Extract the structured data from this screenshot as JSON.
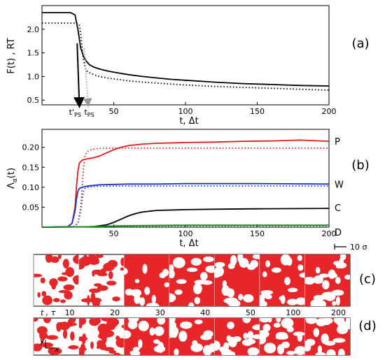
{
  "chart_data": [
    {
      "type": "line",
      "panel_label": "(a)",
      "xlabel": "t, Δt",
      "ylabel": "F(t) , RT",
      "xlim": [
        0,
        200
      ],
      "ylim": [
        0.4,
        2.5
      ],
      "xticks": [
        50,
        100,
        150,
        200
      ],
      "yticks": [
        0.5,
        1.0,
        1.5,
        2.0
      ],
      "ytick_labels": [
        "0.5",
        "1.0",
        "1.5",
        "2.0"
      ],
      "annotations": [
        {
          "label_main": "t'",
          "label_sub": "PS",
          "x": 26
        },
        {
          "label_main": "t",
          "label_sub": "PS",
          "x": 31
        }
      ],
      "series": [
        {
          "style": "solid",
          "color": "#000000",
          "x": [
            0,
            20,
            23,
            25,
            27,
            29,
            31,
            33,
            36,
            40,
            45,
            50,
            60,
            70,
            80,
            90,
            100,
            120,
            140,
            160,
            180,
            200
          ],
          "y": [
            2.35,
            2.35,
            2.3,
            2.0,
            1.6,
            1.42,
            1.32,
            1.25,
            1.2,
            1.16,
            1.12,
            1.09,
            1.04,
            1.0,
            0.97,
            0.94,
            0.92,
            0.88,
            0.85,
            0.83,
            0.81,
            0.8
          ]
        },
        {
          "style": "dotted",
          "color": "#000000",
          "x": [
            0,
            24,
            26,
            27,
            28,
            29,
            30,
            31,
            33,
            36,
            40,
            45,
            50,
            60,
            70,
            80,
            100,
            120,
            140,
            160,
            180,
            200
          ],
          "y": [
            2.13,
            2.13,
            2.1,
            1.9,
            1.6,
            1.35,
            1.2,
            1.12,
            1.08,
            1.04,
            1.0,
            0.97,
            0.95,
            0.91,
            0.88,
            0.86,
            0.82,
            0.79,
            0.77,
            0.75,
            0.73,
            0.71
          ]
        }
      ]
    },
    {
      "type": "line",
      "panel_label": "(b)",
      "xlabel": "t, Δt",
      "ylabel": "Λα(t)",
      "xlim": [
        0,
        200
      ],
      "ylim": [
        0,
        0.245
      ],
      "xticks": [
        50,
        100,
        150,
        200
      ],
      "yticks": [
        0.05,
        0.1,
        0.15,
        0.2
      ],
      "ytick_labels": [
        "0.05",
        "0.10",
        "0.15",
        "0.20"
      ],
      "series": [
        {
          "name": "P",
          "style": "solid",
          "color": "#e11a1a",
          "x": [
            0,
            18,
            21,
            23,
            24,
            25,
            26,
            28,
            30,
            33,
            36,
            40,
            45,
            50,
            55,
            60,
            70,
            80,
            100,
            120,
            140,
            160,
            180,
            200
          ],
          "y": [
            0,
            0.001,
            0.01,
            0.05,
            0.1,
            0.14,
            0.16,
            0.168,
            0.17,
            0.172,
            0.174,
            0.178,
            0.186,
            0.194,
            0.2,
            0.204,
            0.208,
            0.21,
            0.212,
            0.213,
            0.215,
            0.216,
            0.218,
            0.215
          ]
        },
        {
          "name": "",
          "style": "dotted",
          "color": "#e11a1a",
          "x": [
            0,
            22,
            25,
            27,
            28,
            29,
            30,
            32,
            35,
            40,
            50,
            60,
            80,
            100,
            150,
            200
          ],
          "y": [
            0,
            0.001,
            0.01,
            0.05,
            0.1,
            0.15,
            0.18,
            0.19,
            0.195,
            0.197,
            0.198,
            0.198,
            0.198,
            0.198,
            0.198,
            0.198
          ]
        },
        {
          "name": "W",
          "style": "solid",
          "color": "#1f2fd0",
          "x": [
            0,
            18,
            21,
            23,
            24,
            25,
            26,
            28,
            32,
            40,
            60,
            80,
            100,
            150,
            200
          ],
          "y": [
            0,
            0.001,
            0.01,
            0.04,
            0.07,
            0.09,
            0.097,
            0.1,
            0.103,
            0.106,
            0.108,
            0.108,
            0.109,
            0.109,
            0.108
          ]
        },
        {
          "name": "",
          "style": "dotted",
          "color": "#1f2fd0",
          "x": [
            0,
            22,
            25,
            27,
            28,
            29,
            30,
            32,
            35,
            50,
            100,
            150,
            200
          ],
          "y": [
            0,
            0.001,
            0.01,
            0.04,
            0.07,
            0.09,
            0.097,
            0.1,
            0.102,
            0.103,
            0.103,
            0.103,
            0.103
          ]
        },
        {
          "name": "C",
          "style": "solid",
          "color": "#000000",
          "x": [
            0,
            35,
            45,
            50,
            55,
            60,
            65,
            70,
            80,
            100,
            120,
            150,
            200
          ],
          "y": [
            0,
            0.001,
            0.006,
            0.012,
            0.02,
            0.028,
            0.034,
            0.038,
            0.042,
            0.044,
            0.045,
            0.046,
            0.047
          ]
        },
        {
          "name": "",
          "style": "dotted",
          "color": "#000000",
          "x": [
            0,
            40,
            50,
            60,
            80,
            100,
            150,
            200
          ],
          "y": [
            0,
            0.001,
            0.002,
            0.003,
            0.004,
            0.004,
            0.004,
            0.004
          ]
        },
        {
          "name": "D",
          "style": "solid",
          "color": "#1b8a1b",
          "x": [
            0,
            30,
            50,
            70,
            100,
            150,
            200
          ],
          "y": [
            0,
            0.001,
            0.003,
            0.004,
            0.005,
            0.005,
            0.005
          ]
        },
        {
          "name": "",
          "style": "dotted",
          "color": "#1b8a1b",
          "x": [
            0,
            30,
            50,
            100,
            200
          ],
          "y": [
            0,
            0.001,
            0.002,
            0.003,
            0.003
          ]
        }
      ]
    }
  ],
  "snapshots": {
    "scale_bar_label": "10 σ",
    "row_c_label": "(c)",
    "row_d_label": "(d)",
    "time_axis_label": "t , τ",
    "times": [
      "10",
      "20",
      "30",
      "40",
      "50",
      "100",
      "200"
    ],
    "axes_y": "y",
    "axes_x": "x",
    "fill_color": "#e8262a"
  }
}
